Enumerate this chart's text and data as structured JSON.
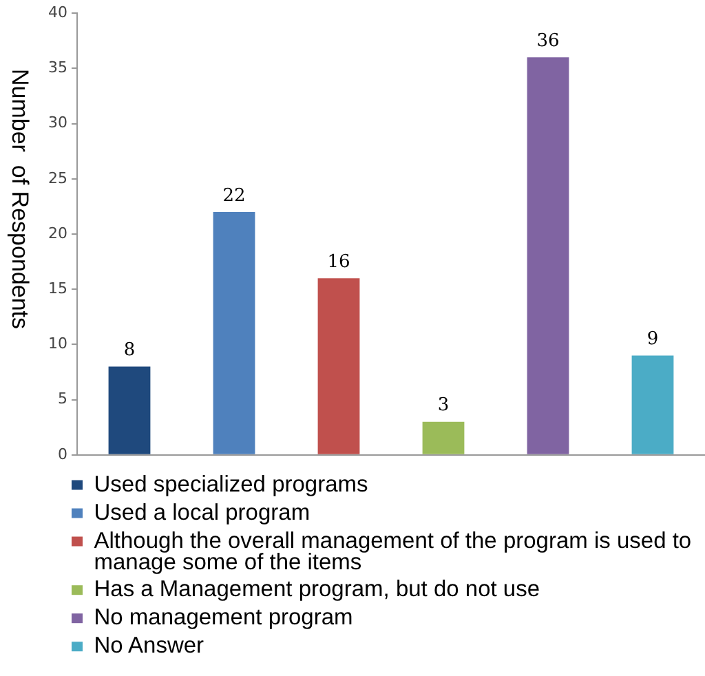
{
  "chart_data": {
    "type": "bar",
    "ylabel": "Number  of Respondents",
    "categories": [
      null,
      null,
      null,
      null,
      null,
      null
    ],
    "series": [
      {
        "name": "Used specialized programs",
        "color": "#1f497d",
        "values": [
          8,
          null,
          null,
          null,
          null,
          null
        ]
      },
      {
        "name": "Used a local program",
        "color": "#4f81bd",
        "values": [
          null,
          22,
          null,
          null,
          null,
          null
        ]
      },
      {
        "name": "Although the overall management of the program is used to manage some of the items",
        "color": "#c0504d",
        "values": [
          null,
          null,
          16,
          null,
          null,
          null
        ]
      },
      {
        "name": "Has a Management program, but do not use",
        "color": "#9bbb59",
        "values": [
          null,
          null,
          null,
          3,
          null,
          null
        ]
      },
      {
        "name": "No management program",
        "color": "#8064a2",
        "values": [
          null,
          null,
          null,
          null,
          36,
          null
        ]
      },
      {
        "name": "No Answer",
        "color": "#4bacc6",
        "values": [
          null,
          null,
          null,
          null,
          null,
          9
        ]
      }
    ],
    "ylim": [
      0,
      40
    ],
    "yticks": [
      0,
      5,
      10,
      15,
      20,
      25,
      30,
      35,
      40
    ],
    "data_labels": true,
    "grid": false,
    "legend": "bottom",
    "tick_labels": "y"
  }
}
